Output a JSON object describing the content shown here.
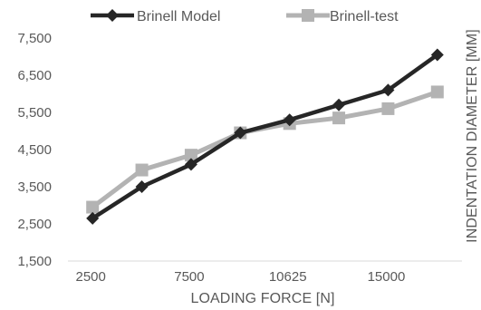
{
  "chart_data": {
    "type": "line",
    "x": [
      "2500",
      "",
      "7500",
      "",
      "10625",
      "",
      "15000",
      ""
    ],
    "series": [
      {
        "name": "Brinell Model",
        "marker": "diamond",
        "color": "#262626",
        "values": [
          2650,
          3500,
          4100,
          4950,
          5300,
          5700,
          6100,
          7050
        ]
      },
      {
        "name": "Brinell-test",
        "marker": "square",
        "color": "#b3b3b3",
        "values": [
          2950,
          3950,
          4350,
          4950,
          5200,
          5350,
          5600,
          6050
        ]
      }
    ],
    "ylim": [
      1500,
      7500
    ],
    "yticks": [
      1500,
      2500,
      3500,
      4500,
      5500,
      6500,
      7500
    ],
    "ytick_labels": [
      "1,500",
      "2,500",
      "3,500",
      "4,500",
      "5,500",
      "6,500",
      "7,500"
    ],
    "xlabel": "LOADING FORCE [N]",
    "ylabel": "INDENTATION DIAMETER [MM]",
    "legend_position": "top",
    "grid": false
  }
}
